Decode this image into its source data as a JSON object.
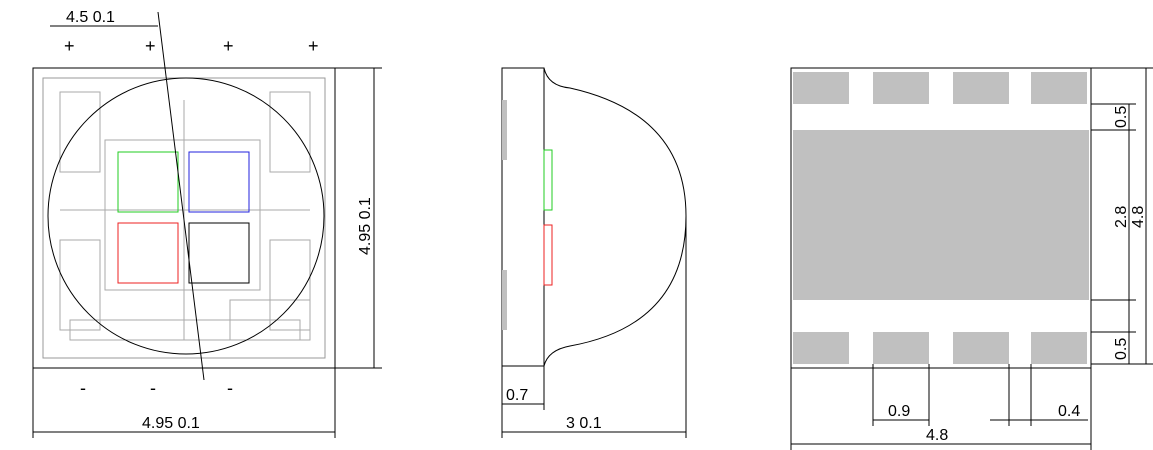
{
  "top_view": {
    "diameter_label": "4.5  0.1",
    "height_label": "4.95  0.1",
    "width_label": "4.95  0.1",
    "plus_signs": [
      "+",
      "+",
      "+",
      "+"
    ],
    "minus_signs": [
      "-",
      "-",
      "-"
    ],
    "chip_colors": {
      "green": "#22cc22",
      "blue": "#2222dd",
      "red": "#ee2222",
      "black": "#000000"
    }
  },
  "side_view": {
    "base_thickness_label": "0.7",
    "total_height_label": "3  0.1"
  },
  "bottom_view": {
    "pad_height_top_label": "0.5",
    "pad_height_bottom_label": "0.5",
    "center_pad_label": "2.8",
    "overall_height_label": "4.8",
    "pad_width_label": "0.9",
    "gap_label": "0.4",
    "overall_width_label": "4.8",
    "pad_color": "#c0c0c0"
  }
}
